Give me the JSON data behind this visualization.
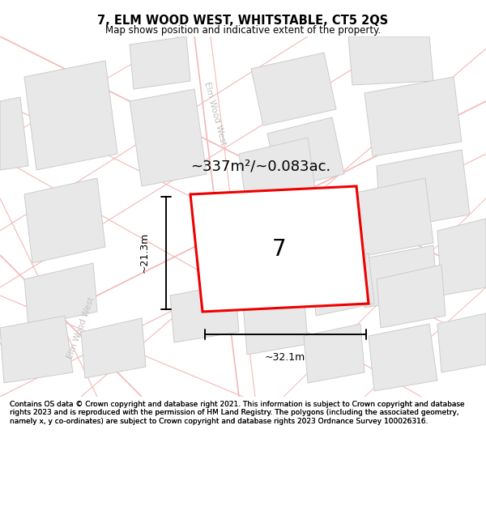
{
  "title": "7, ELM WOOD WEST, WHITSTABLE, CT5 2QS",
  "subtitle": "Map shows position and indicative extent of the property.",
  "footer": "Contains OS data © Crown copyright and database right 2021. This information is subject to Crown copyright and database rights 2023 and is reproduced with the permission of\nHM Land Registry. The polygons (including the associated geometry, namely x, y\nco-ordinates) are subject to Crown copyright and database rights 2023 Ordnance Survey\n100026316.",
  "area_label": "~337m²/~0.083ac.",
  "width_label": "~32.1m",
  "height_label": "~21.3m",
  "number_label": "7",
  "map_bg": "#fafafa",
  "road_color": "#f2b8b8",
  "block_fill": "#e8e8e8",
  "block_edge": "#cccccc",
  "highlight_color": "#ee0000",
  "title_fs": 10.5,
  "subtitle_fs": 8.5,
  "footer_fs": 6.5,
  "area_fs": 13,
  "dim_fs": 9,
  "num_fs": 20,
  "street_fs": 7.5
}
